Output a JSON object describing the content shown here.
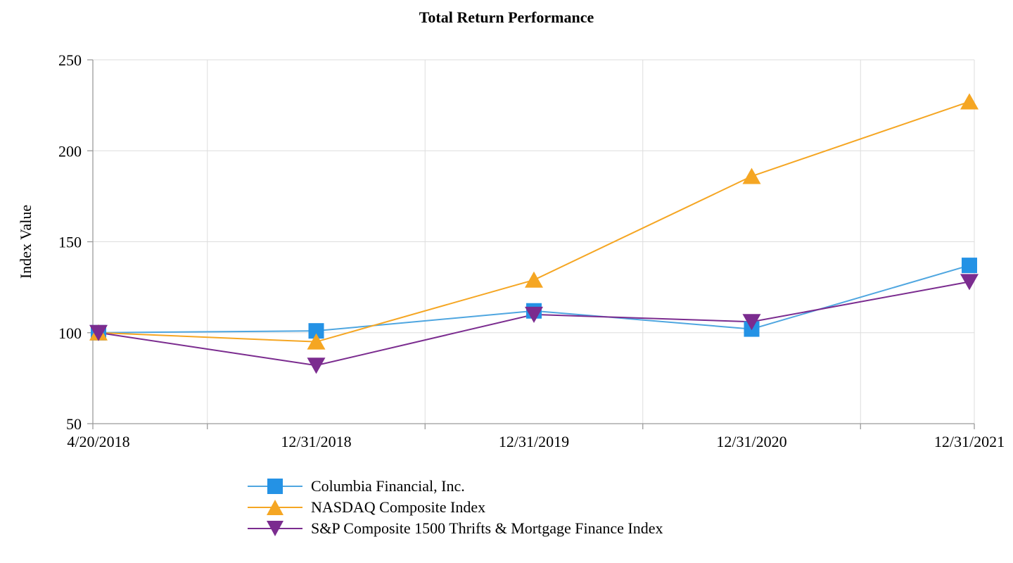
{
  "chart_data": {
    "type": "line",
    "title": "Total Return Performance",
    "ylabel": "Index Value",
    "ylim": [
      50,
      250
    ],
    "yticks": [
      50,
      100,
      150,
      200,
      250
    ],
    "categories": [
      "4/20/2018",
      "12/31/2018",
      "12/31/2019",
      "12/31/2020",
      "12/31/2021"
    ],
    "grid": "on",
    "legend_position": "bottom-left",
    "colors": {
      "blue_line": "#4FA6E0",
      "blue_marker": "#2492E5",
      "orange": "#F5A623",
      "purple": "#7B2C8F",
      "gridline": "#dddddd",
      "axis": "#9b9b9b"
    },
    "series": [
      {
        "name": "Columbia Financial, Inc.",
        "marker": "square",
        "color": "#4FA6E0",
        "marker_color": "#2492E5",
        "values": [
          100,
          101,
          112,
          102,
          137
        ]
      },
      {
        "name": "NASDAQ Composite Index",
        "marker": "triangle-up",
        "color": "#F5A623",
        "marker_color": "#F5A623",
        "values": [
          100,
          95,
          129,
          186,
          227
        ]
      },
      {
        "name": "S&P Composite 1500 Thrifts & Mortgage Finance Index",
        "marker": "triangle-down",
        "color": "#7B2C8F",
        "marker_color": "#7B2C8F",
        "values": [
          100,
          82,
          110,
          106,
          128
        ]
      }
    ]
  }
}
